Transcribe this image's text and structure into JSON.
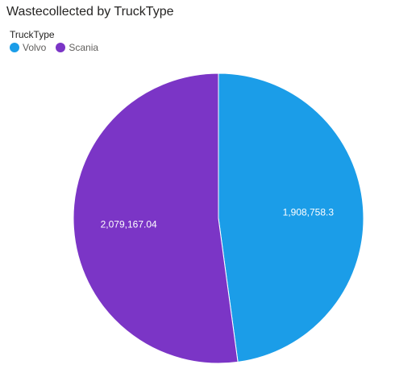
{
  "colors": {
    "Volvo": "#1B9DE8",
    "Scania": "#7B35C6"
  },
  "chart_data": {
    "type": "pie",
    "title": "Wastecollected by TruckType",
    "legend_title": "TruckType",
    "legend_position": "top-left",
    "categories": [
      "Volvo",
      "Scania"
    ],
    "values": [
      1908758.3,
      2079167.04
    ],
    "labels": [
      "1,908,758.3",
      "2,079,167.04"
    ]
  }
}
